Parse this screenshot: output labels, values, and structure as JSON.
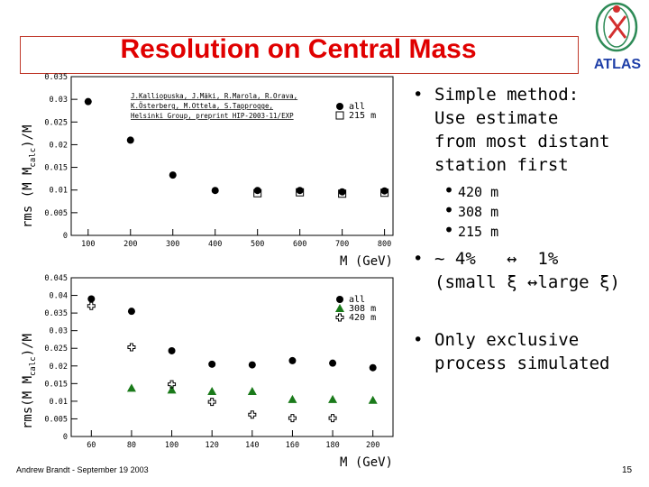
{
  "slide": {
    "title": "Resolution on Central Mass",
    "footer_left": "Andrew Brandt - September 19 2003",
    "page_number": "15"
  },
  "logo": {
    "text": "ATLAS",
    "icon": "atlas-logo-icon",
    "colors": {
      "text": "#1f3fa8",
      "ring": "#2e8b57",
      "accent": "#d32f2f"
    }
  },
  "bullets": [
    {
      "text": [
        "Simple method:",
        "Use estimate",
        "from most distant",
        "station first"
      ],
      "sub": [
        "420 m",
        "308 m",
        "215 m"
      ]
    },
    {
      "text": [
        "~ 4%   ↔  1%",
        "(small ξ ↔large ξ)"
      ]
    },
    {
      "text": [
        "Only exclusive",
        "process simulated"
      ]
    }
  ],
  "chart_data": [
    {
      "type": "scatter",
      "ylabel": "rms (M   M",
      "ylabel_sub": "calc",
      "ylabel_tail": ")/M",
      "xlabel": "M (GeV)",
      "xlim": [
        60,
        820
      ],
      "ylim": [
        0,
        0.035
      ],
      "x_ticks": [
        100,
        200,
        300,
        400,
        500,
        600,
        700,
        800
      ],
      "y_ticks": [
        0,
        0.005,
        0.01,
        0.015,
        0.02,
        0.025,
        0.03,
        0.035
      ],
      "y_tick_labels": [
        "0",
        "0.005",
        "0.01",
        "0.015",
        "0.02",
        "0.025",
        "0.03",
        "0.035"
      ],
      "citation": [
        "J.Kalliopuska, J.Mäki, R.Marola, R.Orava,",
        "K.Österberg, M.Ottela, S.Tapprogge,",
        "Helsinki Group, preprint HIP-2003-11/EXP"
      ],
      "series": [
        {
          "name": "all",
          "marker": "filled-circle",
          "x": [
            100,
            200,
            300,
            400,
            500,
            600,
            700,
            800
          ],
          "values": [
            0.0295,
            0.021,
            0.0133,
            0.0099,
            0.0099,
            0.0099,
            0.0096,
            0.0098
          ]
        },
        {
          "name": "215 m",
          "marker": "open-square",
          "x": [
            500,
            600,
            700,
            800
          ],
          "values": [
            0.0093,
            0.0095,
            0.0092,
            0.0094
          ]
        }
      ]
    },
    {
      "type": "scatter",
      "ylabel": "rms(M   M",
      "ylabel_sub": "calc",
      "ylabel_tail": ")/M",
      "xlabel": "M (GeV)",
      "xlim": [
        50,
        210
      ],
      "ylim": [
        0,
        0.045
      ],
      "x_ticks": [
        60,
        80,
        100,
        120,
        140,
        160,
        180,
        200
      ],
      "y_ticks": [
        0,
        0.005,
        0.01,
        0.015,
        0.02,
        0.025,
        0.03,
        0.035,
        0.04,
        0.045
      ],
      "y_tick_labels": [
        "0",
        "0.005",
        "0.01",
        "0.015",
        "0.02",
        "0.025",
        "0.03",
        "0.035",
        "0.04",
        "0.045"
      ],
      "series": [
        {
          "name": "all",
          "marker": "filled-circle",
          "x": [
            60,
            80,
            100,
            120,
            140,
            160,
            180,
            200
          ],
          "values": [
            0.039,
            0.0355,
            0.0243,
            0.0205,
            0.0203,
            0.0215,
            0.0208,
            0.0195
          ]
        },
        {
          "name": "308 m",
          "marker": "filled-triangle",
          "x": [
            80,
            100,
            120,
            140,
            160,
            180,
            200
          ],
          "values": [
            0.0137,
            0.0132,
            0.0128,
            0.0128,
            0.0105,
            0.0105,
            0.0103
          ]
        },
        {
          "name": "420 m",
          "marker": "open-cross",
          "x": [
            60,
            80,
            100,
            120,
            140,
            160,
            180
          ],
          "values": [
            0.037,
            0.0253,
            0.0148,
            0.0098,
            0.0062,
            0.0052,
            0.0052
          ]
        }
      ]
    }
  ]
}
